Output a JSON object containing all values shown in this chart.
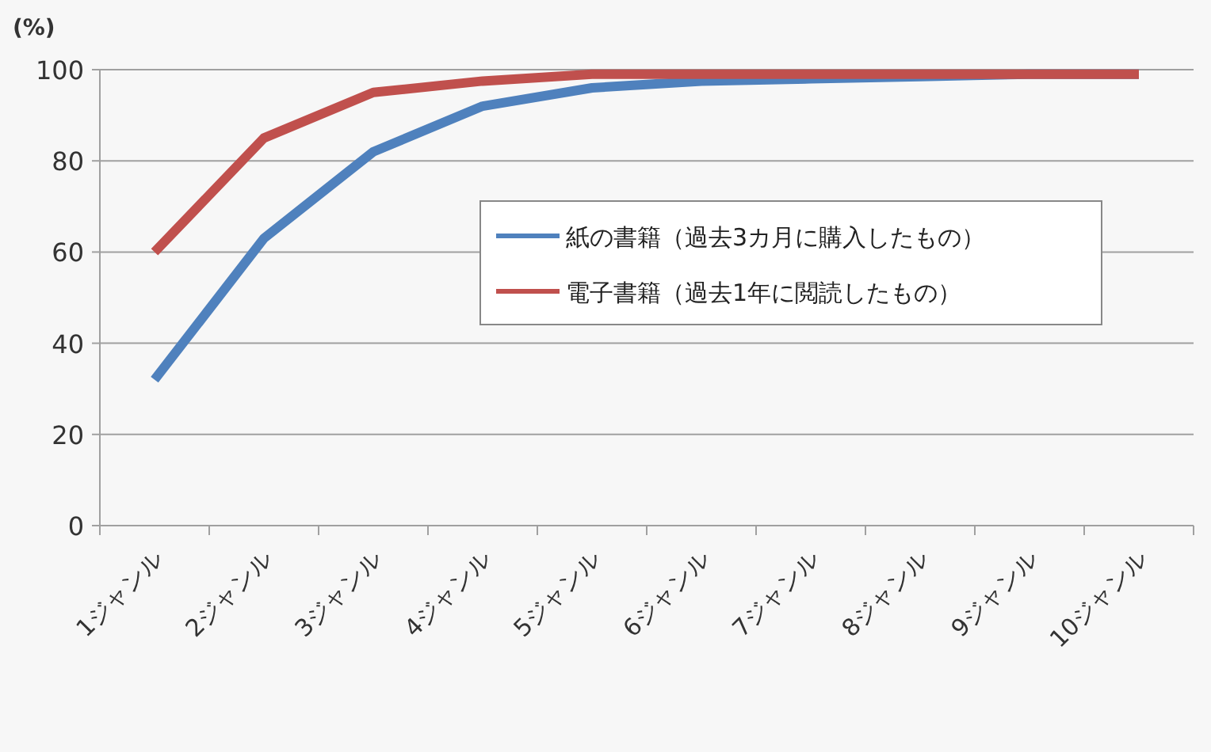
{
  "chart_data": {
    "type": "line",
    "ylabel": "(%)",
    "categories": [
      "1ジャンル",
      "2ジャンル",
      "3ジャンル",
      "4ジャンル",
      "5ジャンル",
      "6ジャンル",
      "7ジャンル",
      "8ジャンル",
      "9ジャンル",
      "10ジャンル"
    ],
    "series": [
      {
        "name": "紙の書籍（過去3カ月に購入したもの）",
        "color": "#4f81bd",
        "values": [
          32,
          63,
          82,
          92,
          96,
          97.5,
          98,
          98.5,
          99,
          99
        ]
      },
      {
        "name": "電子書籍（過去1年に閲読したもの）",
        "color": "#c0504d",
        "values": [
          60,
          85,
          95,
          97.5,
          99,
          99,
          99,
          99,
          99,
          99
        ]
      }
    ],
    "ylim": [
      0,
      100
    ],
    "yticks": [
      0,
      20,
      40,
      60,
      80,
      100
    ],
    "grid": "y",
    "legend": "right"
  }
}
